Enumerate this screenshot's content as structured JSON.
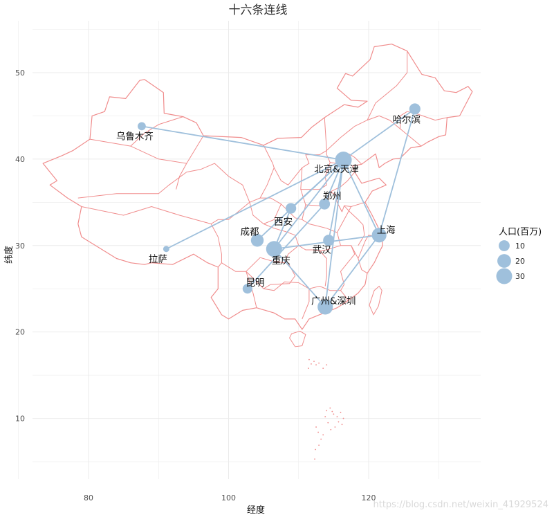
{
  "chart_data": {
    "type": "scatter",
    "subtype": "map-with-connections",
    "title": "十六条连线",
    "xlabel": "经度",
    "ylabel": "纬度",
    "xlim": [
      72,
      136
    ],
    "ylim": [
      3,
      56
    ],
    "x_ticks": [
      80,
      100,
      120
    ],
    "y_ticks": [
      10,
      20,
      30,
      40,
      50
    ],
    "grid": true,
    "colors": {
      "boundary": "#f08c8c",
      "point": "#9fc0dc",
      "line": "#9fc0dc",
      "grid": "#ebebeb"
    },
    "cities": [
      {
        "name": "乌鲁木齐",
        "lon": 87.6,
        "lat": 43.8,
        "pop": 3.5
      },
      {
        "name": "哈尔滨",
        "lon": 126.6,
        "lat": 45.8,
        "pop": 10.6
      },
      {
        "name": "北京&天津",
        "lon": 116.4,
        "lat": 39.9,
        "pop": 34.0
      },
      {
        "name": "郑州",
        "lon": 113.7,
        "lat": 34.8,
        "pop": 10.0
      },
      {
        "name": "西安",
        "lon": 108.9,
        "lat": 34.3,
        "pop": 9.0
      },
      {
        "name": "上海",
        "lon": 121.5,
        "lat": 31.2,
        "pop": 24.0
      },
      {
        "name": "成都",
        "lon": 104.1,
        "lat": 30.6,
        "pop": 16.0
      },
      {
        "name": "拉萨",
        "lon": 91.1,
        "lat": 29.6,
        "pop": 0.9
      },
      {
        "name": "武汉",
        "lon": 114.3,
        "lat": 30.6,
        "pop": 10.9
      },
      {
        "name": "重庆",
        "lon": 106.5,
        "lat": 29.6,
        "pop": 30.5
      },
      {
        "name": "昆明",
        "lon": 102.7,
        "lat": 25.0,
        "pop": 6.8
      },
      {
        "name": "广州&深圳",
        "lon": 113.8,
        "lat": 22.9,
        "pop": 27.0
      }
    ],
    "connections": [
      [
        "北京&天津",
        "乌鲁木齐"
      ],
      [
        "北京&天津",
        "哈尔滨"
      ],
      [
        "北京&天津",
        "上海"
      ],
      [
        "北京&天津",
        "西安"
      ],
      [
        "北京&天津",
        "郑州"
      ],
      [
        "北京&天津",
        "拉萨"
      ],
      [
        "北京&天津",
        "成都"
      ],
      [
        "北京&天津",
        "重庆"
      ],
      [
        "北京&天津",
        "广州&深圳"
      ],
      [
        "北京&天津",
        "武汉"
      ],
      [
        "上海",
        "哈尔滨"
      ],
      [
        "上海",
        "重庆"
      ],
      [
        "上海",
        "广州&深圳"
      ],
      [
        "重庆",
        "西安"
      ],
      [
        "重庆",
        "广州&深圳"
      ],
      [
        "昆明",
        "郑州"
      ]
    ],
    "legend": {
      "title": "人口(百万)",
      "position": "right",
      "entries": [
        {
          "label": "10",
          "value": 10
        },
        {
          "label": "20",
          "value": 20
        },
        {
          "label": "30",
          "value": 30
        }
      ]
    }
  },
  "watermark": "https://blog.csdn.net/weixin_41929524"
}
